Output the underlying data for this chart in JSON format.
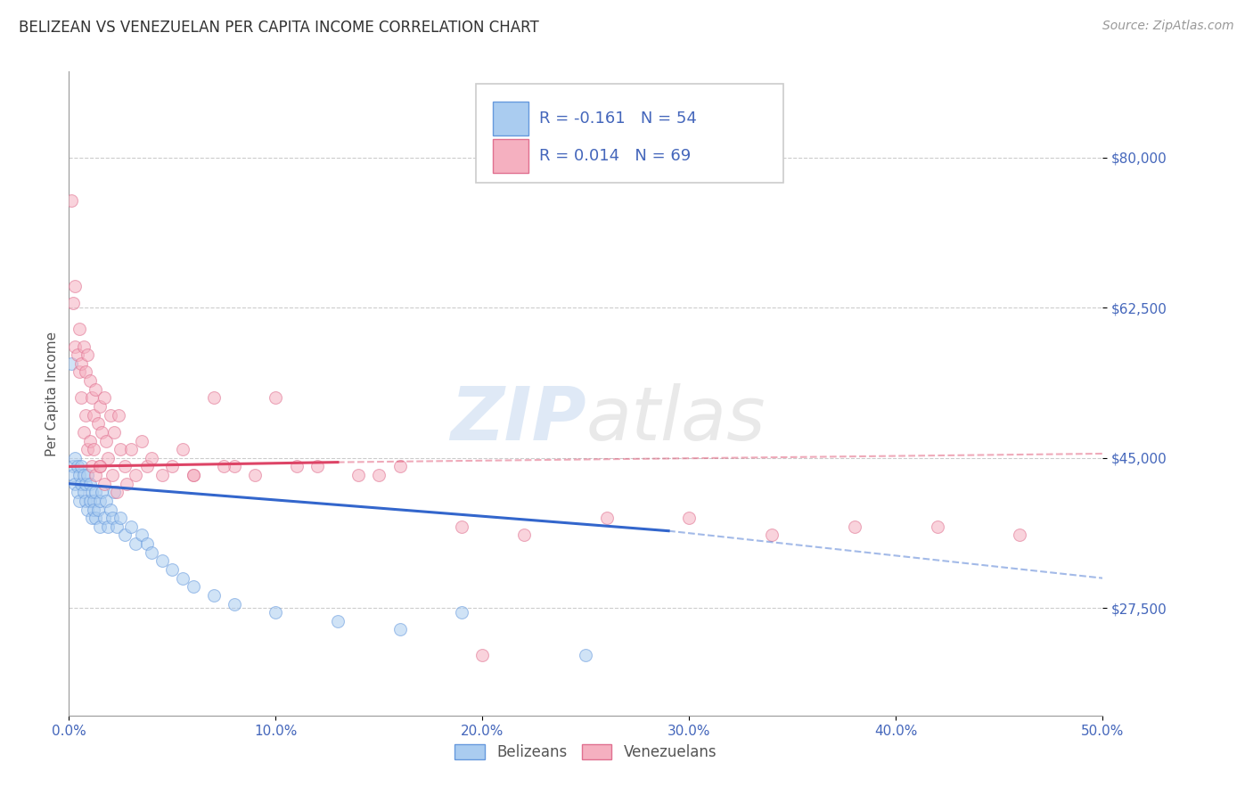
{
  "title": "BELIZEAN VS VENEZUELAN PER CAPITA INCOME CORRELATION CHART",
  "source": "Source: ZipAtlas.com",
  "ylabel": "Per Capita Income",
  "xlabel_ticks": [
    "0.0%",
    "10.0%",
    "20.0%",
    "30.0%",
    "40.0%",
    "50.0%"
  ],
  "ytick_labels": [
    "$27,500",
    "$45,000",
    "$62,500",
    "$80,000"
  ],
  "ytick_values": [
    27500,
    45000,
    62500,
    80000
  ],
  "xlim": [
    0.0,
    0.5
  ],
  "ylim": [
    15000,
    90000
  ],
  "belizean_color": "#aaccf0",
  "venezuelan_color": "#f5b0c0",
  "belizean_edge": "#6699dd",
  "venezuelan_edge": "#e07090",
  "belizean_R": -0.161,
  "belizean_N": 54,
  "venezuelan_R": 0.014,
  "venezuelan_N": 69,
  "belizean_line_color": "#3366cc",
  "venezuelan_line_color": "#dd4466",
  "belizean_x": [
    0.001,
    0.002,
    0.002,
    0.003,
    0.003,
    0.004,
    0.004,
    0.005,
    0.005,
    0.006,
    0.006,
    0.007,
    0.007,
    0.008,
    0.008,
    0.009,
    0.009,
    0.01,
    0.01,
    0.011,
    0.011,
    0.012,
    0.012,
    0.013,
    0.013,
    0.014,
    0.015,
    0.015,
    0.016,
    0.017,
    0.018,
    0.019,
    0.02,
    0.021,
    0.022,
    0.023,
    0.025,
    0.027,
    0.03,
    0.032,
    0.035,
    0.038,
    0.04,
    0.045,
    0.05,
    0.055,
    0.06,
    0.07,
    0.08,
    0.1,
    0.13,
    0.16,
    0.19,
    0.25
  ],
  "belizean_y": [
    56000,
    44000,
    43000,
    45000,
    42000,
    44000,
    41000,
    43000,
    40000,
    44000,
    42000,
    43000,
    41000,
    42000,
    40000,
    43000,
    39000,
    42000,
    40000,
    41000,
    38000,
    40000,
    39000,
    41000,
    38000,
    39000,
    40000,
    37000,
    41000,
    38000,
    40000,
    37000,
    39000,
    38000,
    41000,
    37000,
    38000,
    36000,
    37000,
    35000,
    36000,
    35000,
    34000,
    33000,
    32000,
    31000,
    30000,
    29000,
    28000,
    27000,
    26000,
    25000,
    27000,
    22000
  ],
  "venezuelan_x": [
    0.001,
    0.002,
    0.003,
    0.003,
    0.004,
    0.005,
    0.005,
    0.006,
    0.006,
    0.007,
    0.007,
    0.008,
    0.008,
    0.009,
    0.009,
    0.01,
    0.01,
    0.011,
    0.011,
    0.012,
    0.012,
    0.013,
    0.013,
    0.014,
    0.015,
    0.015,
    0.016,
    0.017,
    0.017,
    0.018,
    0.019,
    0.02,
    0.021,
    0.022,
    0.023,
    0.024,
    0.025,
    0.027,
    0.028,
    0.03,
    0.032,
    0.035,
    0.038,
    0.04,
    0.045,
    0.05,
    0.055,
    0.06,
    0.07,
    0.08,
    0.09,
    0.1,
    0.12,
    0.14,
    0.16,
    0.19,
    0.22,
    0.26,
    0.3,
    0.34,
    0.38,
    0.42,
    0.46,
    0.2,
    0.15,
    0.11,
    0.075,
    0.06,
    0.015
  ],
  "venezuelan_y": [
    75000,
    63000,
    65000,
    58000,
    57000,
    55000,
    60000,
    56000,
    52000,
    58000,
    48000,
    55000,
    50000,
    57000,
    46000,
    54000,
    47000,
    52000,
    44000,
    50000,
    46000,
    53000,
    43000,
    49000,
    51000,
    44000,
    48000,
    52000,
    42000,
    47000,
    45000,
    50000,
    43000,
    48000,
    41000,
    50000,
    46000,
    44000,
    42000,
    46000,
    43000,
    47000,
    44000,
    45000,
    43000,
    44000,
    46000,
    43000,
    52000,
    44000,
    43000,
    52000,
    44000,
    43000,
    44000,
    37000,
    36000,
    38000,
    38000,
    36000,
    37000,
    37000,
    36000,
    22000,
    43000,
    44000,
    44000,
    43000,
    44000
  ],
  "background_color": "#ffffff",
  "grid_color": "#cccccc",
  "axis_color": "#999999",
  "title_color": "#333333",
  "source_color": "#999999",
  "tick_label_color": "#4466bb",
  "marker_size": 100,
  "marker_alpha": 0.55
}
